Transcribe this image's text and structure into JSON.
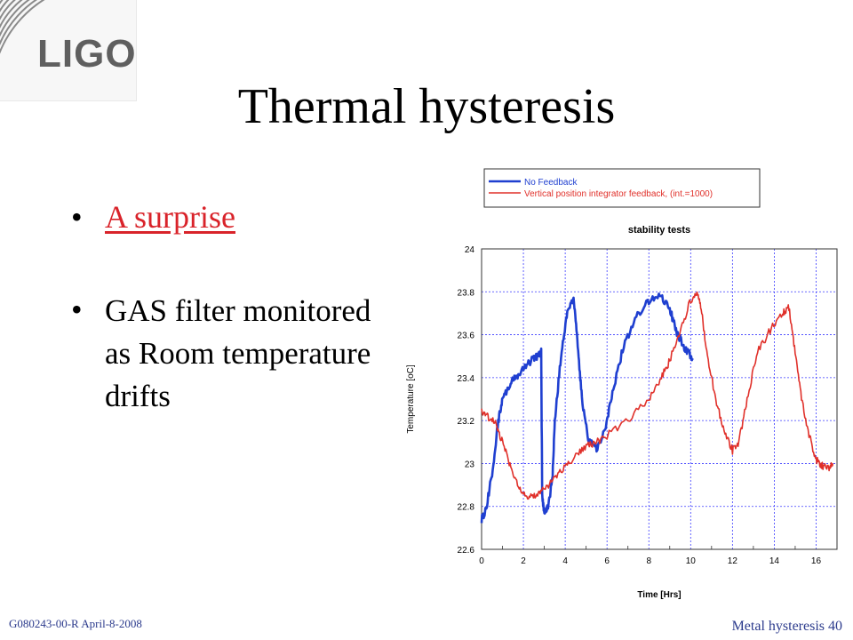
{
  "logo": {
    "text": "LIGO"
  },
  "slide": {
    "title": "Thermal hysteresis",
    "bullet1": "A surprise",
    "bullet2": "GAS filter monitored as Room temperature drifts",
    "bullet_glyph": "•"
  },
  "footer": {
    "left": "G080243-00-R  April-8-2008",
    "right": "Metal hysteresis 40"
  },
  "colors": {
    "title": "#000000",
    "link": "#d9232a",
    "footer": "#2b3a8c",
    "series_blue": "#1f3fd0",
    "series_red": "#e0302a",
    "grid": "#3a3aff"
  },
  "chart_data": {
    "type": "line",
    "title": "stability tests",
    "xlabel": "Time [Hrs]",
    "ylabel": "Temperature [oC]",
    "xlim": [
      0,
      17
    ],
    "ylim": [
      22.6,
      24
    ],
    "xticks": [
      0,
      2,
      4,
      6,
      8,
      10,
      12,
      14,
      16
    ],
    "yticks": [
      22.6,
      22.8,
      23,
      23.2,
      23.4,
      23.6,
      23.8,
      24
    ],
    "grid": true,
    "legend_position": "top, above plot",
    "series": [
      {
        "name": "No Feedback",
        "color": "#1f3fd0",
        "x": [
          0,
          0.2,
          0.5,
          0.8,
          1.0,
          1.3,
          1.6,
          2.0,
          2.4,
          2.7,
          2.85,
          2.9,
          3.0,
          3.2,
          3.4,
          3.5,
          3.8,
          4.1,
          4.4,
          4.6,
          4.8,
          5.1,
          5.5,
          5.9,
          6.3,
          6.8,
          7.4,
          8.0,
          8.6,
          9.0,
          9.3,
          9.7,
          10.1
        ],
        "y": [
          22.74,
          22.78,
          22.95,
          23.2,
          23.3,
          23.36,
          23.4,
          23.44,
          23.48,
          23.5,
          23.52,
          22.85,
          22.76,
          22.8,
          22.95,
          23.2,
          23.5,
          23.7,
          23.77,
          23.55,
          23.3,
          23.12,
          23.07,
          23.15,
          23.35,
          23.55,
          23.68,
          23.76,
          23.78,
          23.72,
          23.62,
          23.54,
          23.49
        ]
      },
      {
        "name": "Vertical position integrator feedback, (int.=1000)",
        "color": "#e0302a",
        "x": [
          0,
          0.3,
          0.7,
          1.0,
          1.4,
          1.8,
          2.2,
          2.6,
          3.0,
          3.5,
          4.0,
          4.5,
          5.0,
          5.5,
          6.0,
          7.0,
          8.0,
          8.6,
          9.0,
          9.5,
          10.0,
          10.3,
          10.5,
          10.8,
          11.2,
          11.6,
          12.0,
          12.3,
          12.7,
          13.2,
          13.8,
          14.4,
          14.7,
          15.0,
          15.3,
          15.7,
          16.0,
          16.3,
          16.6,
          16.8
        ],
        "y": [
          23.24,
          23.22,
          23.18,
          23.1,
          22.98,
          22.88,
          22.84,
          22.85,
          22.88,
          22.93,
          22.98,
          23.03,
          23.08,
          23.1,
          23.13,
          23.2,
          23.3,
          23.4,
          23.48,
          23.62,
          23.76,
          23.8,
          23.72,
          23.5,
          23.3,
          23.15,
          23.06,
          23.1,
          23.3,
          23.52,
          23.62,
          23.7,
          23.73,
          23.52,
          23.3,
          23.12,
          23.02,
          22.99,
          22.98,
          23.0
        ]
      }
    ]
  }
}
